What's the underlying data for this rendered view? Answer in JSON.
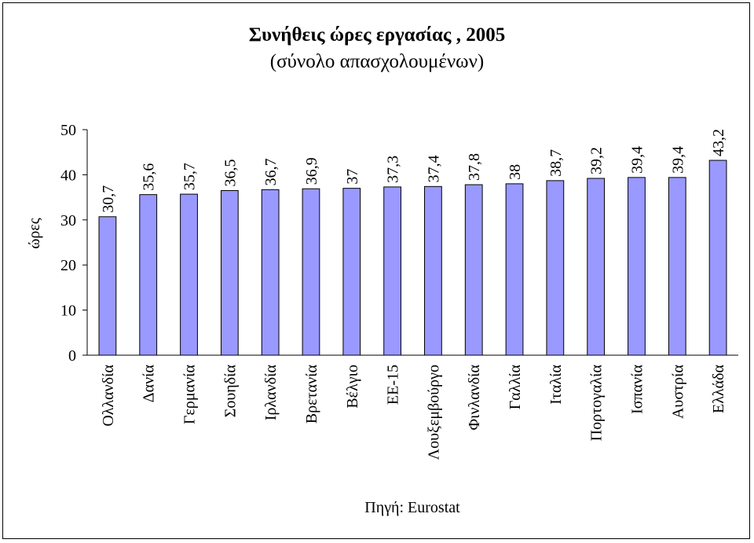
{
  "chart_data": {
    "type": "bar",
    "title": "Συνήθεις ώρες εργασίας , 2005",
    "subtitle": "(σύνολο απασχολουμένων)",
    "xlabel": "",
    "ylabel": "ώρες",
    "ylim": [
      0,
      50
    ],
    "yticks": [
      0,
      10,
      20,
      30,
      40,
      50
    ],
    "grid": false,
    "legend": "none",
    "source": "Πηγή: Eurostat",
    "bar_color": "#9999ff",
    "bar_border_color": "#000000",
    "categories": [
      "Ολλανδία",
      "Δανία",
      "Γερμανία",
      "Σουηδία",
      "Ιρλανδία",
      "Βρετανία",
      "Βέλγιο",
      "ΕΕ-15",
      "Λουξεμβούργο",
      "Φινλανδία",
      "Γαλλία",
      "Ιταλία",
      "Πορτογαλία",
      "Ισπανία",
      "Αυστρία",
      "Ελλάδα"
    ],
    "values": [
      30.7,
      35.6,
      35.7,
      36.5,
      36.7,
      36.9,
      37,
      37.3,
      37.4,
      37.8,
      38,
      38.7,
      39.2,
      39.4,
      39.4,
      43.2
    ],
    "data_labels": [
      "30,7",
      "35,6",
      "35,7",
      "36,5",
      "36,7",
      "36,9",
      "37",
      "37,3",
      "37,4",
      "37,8",
      "38",
      "38,7",
      "39,2",
      "39,4",
      "39,4",
      "43,2"
    ]
  }
}
